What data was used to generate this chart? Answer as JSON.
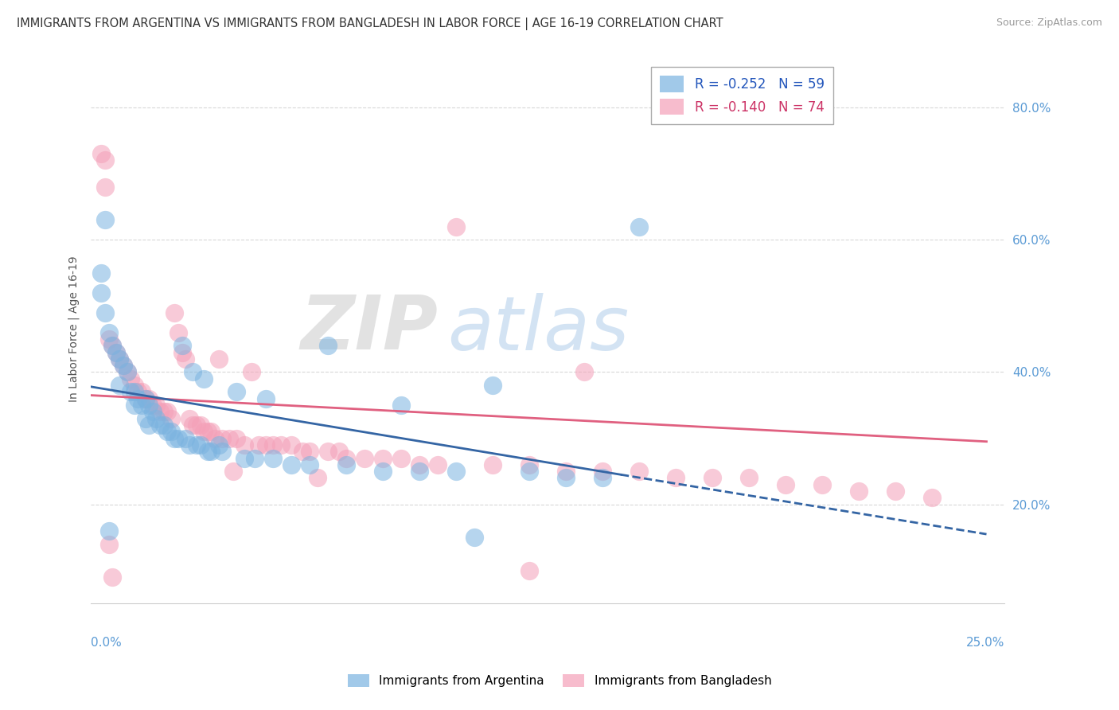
{
  "title": "IMMIGRANTS FROM ARGENTINA VS IMMIGRANTS FROM BANGLADESH IN LABOR FORCE | AGE 16-19 CORRELATION CHART",
  "source": "Source: ZipAtlas.com",
  "ylabel": "In Labor Force | Age 16-19",
  "xlim": [
    0.0,
    0.25
  ],
  "ylim": [
    0.05,
    0.88
  ],
  "watermark_zip": "ZIP",
  "watermark_atlas": "atlas",
  "argentina_R": -0.252,
  "argentina_N": 59,
  "bangladesh_R": -0.14,
  "bangladesh_N": 74,
  "argentina_color": "#7ab3e0",
  "bangladesh_color": "#f4a0b8",
  "argentina_trend": [
    0.0,
    0.378,
    0.145,
    0.245
  ],
  "argentina_dashed": [
    0.145,
    0.245,
    0.245,
    0.155
  ],
  "bangladesh_trend": [
    0.0,
    0.365,
    0.245,
    0.295
  ],
  "yticks": [
    0.2,
    0.4,
    0.6,
    0.8
  ],
  "ytick_labels": [
    "20.0%",
    "40.0%",
    "60.0%",
    "80.0%"
  ],
  "tick_color": "#5b9bd5",
  "grid_color": "#d8d8d8",
  "background_color": "#ffffff",
  "argentina_points": [
    [
      0.003,
      0.52
    ],
    [
      0.004,
      0.49
    ],
    [
      0.005,
      0.46
    ],
    [
      0.006,
      0.44
    ],
    [
      0.007,
      0.43
    ],
    [
      0.008,
      0.42
    ],
    [
      0.008,
      0.38
    ],
    [
      0.009,
      0.41
    ],
    [
      0.01,
      0.4
    ],
    [
      0.011,
      0.37
    ],
    [
      0.012,
      0.37
    ],
    [
      0.012,
      0.35
    ],
    [
      0.013,
      0.36
    ],
    [
      0.014,
      0.35
    ],
    [
      0.015,
      0.36
    ],
    [
      0.015,
      0.33
    ],
    [
      0.016,
      0.35
    ],
    [
      0.016,
      0.32
    ],
    [
      0.017,
      0.34
    ],
    [
      0.018,
      0.33
    ],
    [
      0.019,
      0.32
    ],
    [
      0.02,
      0.32
    ],
    [
      0.021,
      0.31
    ],
    [
      0.022,
      0.31
    ],
    [
      0.023,
      0.3
    ],
    [
      0.024,
      0.3
    ],
    [
      0.025,
      0.44
    ],
    [
      0.026,
      0.3
    ],
    [
      0.027,
      0.29
    ],
    [
      0.028,
      0.4
    ],
    [
      0.029,
      0.29
    ],
    [
      0.03,
      0.29
    ],
    [
      0.031,
      0.39
    ],
    [
      0.032,
      0.28
    ],
    [
      0.033,
      0.28
    ],
    [
      0.035,
      0.29
    ],
    [
      0.036,
      0.28
    ],
    [
      0.04,
      0.37
    ],
    [
      0.042,
      0.27
    ],
    [
      0.045,
      0.27
    ],
    [
      0.048,
      0.36
    ],
    [
      0.05,
      0.27
    ],
    [
      0.055,
      0.26
    ],
    [
      0.06,
      0.26
    ],
    [
      0.065,
      0.44
    ],
    [
      0.07,
      0.26
    ],
    [
      0.08,
      0.25
    ],
    [
      0.085,
      0.35
    ],
    [
      0.09,
      0.25
    ],
    [
      0.1,
      0.25
    ],
    [
      0.105,
      0.15
    ],
    [
      0.11,
      0.38
    ],
    [
      0.12,
      0.25
    ],
    [
      0.13,
      0.24
    ],
    [
      0.14,
      0.24
    ],
    [
      0.15,
      0.62
    ],
    [
      0.003,
      0.55
    ],
    [
      0.004,
      0.63
    ],
    [
      0.005,
      0.16
    ]
  ],
  "bangladesh_points": [
    [
      0.003,
      0.73
    ],
    [
      0.004,
      0.72
    ],
    [
      0.004,
      0.68
    ],
    [
      0.005,
      0.45
    ],
    [
      0.006,
      0.44
    ],
    [
      0.007,
      0.43
    ],
    [
      0.008,
      0.42
    ],
    [
      0.009,
      0.41
    ],
    [
      0.01,
      0.4
    ],
    [
      0.011,
      0.39
    ],
    [
      0.012,
      0.38
    ],
    [
      0.013,
      0.37
    ],
    [
      0.014,
      0.37
    ],
    [
      0.015,
      0.36
    ],
    [
      0.016,
      0.36
    ],
    [
      0.017,
      0.35
    ],
    [
      0.018,
      0.35
    ],
    [
      0.019,
      0.34
    ],
    [
      0.02,
      0.34
    ],
    [
      0.021,
      0.34
    ],
    [
      0.022,
      0.33
    ],
    [
      0.023,
      0.49
    ],
    [
      0.024,
      0.46
    ],
    [
      0.025,
      0.43
    ],
    [
      0.026,
      0.42
    ],
    [
      0.027,
      0.33
    ],
    [
      0.028,
      0.32
    ],
    [
      0.029,
      0.32
    ],
    [
      0.03,
      0.32
    ],
    [
      0.031,
      0.31
    ],
    [
      0.032,
      0.31
    ],
    [
      0.033,
      0.31
    ],
    [
      0.034,
      0.3
    ],
    [
      0.035,
      0.42
    ],
    [
      0.036,
      0.3
    ],
    [
      0.038,
      0.3
    ],
    [
      0.039,
      0.25
    ],
    [
      0.04,
      0.3
    ],
    [
      0.042,
      0.29
    ],
    [
      0.044,
      0.4
    ],
    [
      0.046,
      0.29
    ],
    [
      0.048,
      0.29
    ],
    [
      0.05,
      0.29
    ],
    [
      0.052,
      0.29
    ],
    [
      0.055,
      0.29
    ],
    [
      0.058,
      0.28
    ],
    [
      0.06,
      0.28
    ],
    [
      0.062,
      0.24
    ],
    [
      0.065,
      0.28
    ],
    [
      0.068,
      0.28
    ],
    [
      0.07,
      0.27
    ],
    [
      0.075,
      0.27
    ],
    [
      0.08,
      0.27
    ],
    [
      0.085,
      0.27
    ],
    [
      0.09,
      0.26
    ],
    [
      0.095,
      0.26
    ],
    [
      0.1,
      0.62
    ],
    [
      0.11,
      0.26
    ],
    [
      0.12,
      0.26
    ],
    [
      0.13,
      0.25
    ],
    [
      0.135,
      0.4
    ],
    [
      0.14,
      0.25
    ],
    [
      0.15,
      0.25
    ],
    [
      0.16,
      0.24
    ],
    [
      0.17,
      0.24
    ],
    [
      0.18,
      0.24
    ],
    [
      0.19,
      0.23
    ],
    [
      0.2,
      0.23
    ],
    [
      0.21,
      0.22
    ],
    [
      0.22,
      0.22
    ],
    [
      0.23,
      0.21
    ],
    [
      0.005,
      0.14
    ],
    [
      0.006,
      0.09
    ],
    [
      0.12,
      0.1
    ]
  ]
}
